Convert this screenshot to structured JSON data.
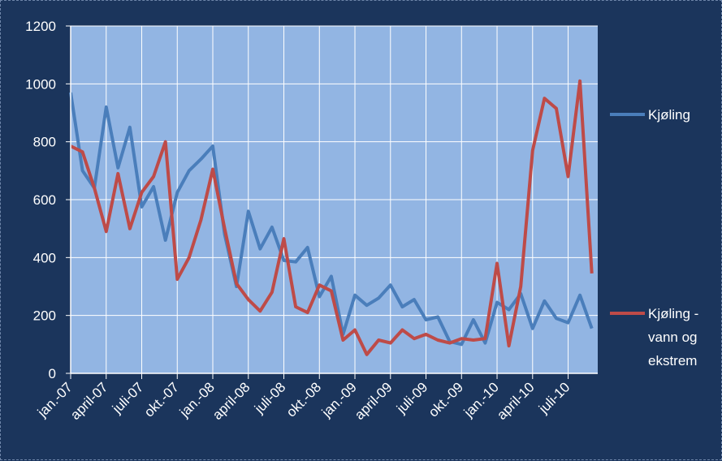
{
  "chart_data": {
    "type": "line",
    "title": "",
    "xlabel": "",
    "ylabel": "",
    "ylim": [
      0,
      1200
    ],
    "yticks": [
      0,
      200,
      400,
      600,
      800,
      1000,
      1200
    ],
    "grid": true,
    "legend_position": "right",
    "x_tick_labels": [
      "jan.-07",
      "april-07",
      "juli-07",
      "okt.-07",
      "jan.-08",
      "april-08",
      "juli-08",
      "okt.-08",
      "jan.-09",
      "april-09",
      "juli-09",
      "okt.-09",
      "jan.-10",
      "april-10",
      "juli-10"
    ],
    "x": [
      "jan.-07",
      "feb.-07",
      "mars-07",
      "april-07",
      "mai-07",
      "juni-07",
      "juli-07",
      "aug.-07",
      "sep.-07",
      "okt.-07",
      "nov.-07",
      "des.-07",
      "jan.-08",
      "feb.-08",
      "mars-08",
      "april-08",
      "mai-08",
      "juni-08",
      "juli-08",
      "aug.-08",
      "sep.-08",
      "okt.-08",
      "nov.-08",
      "des.-08",
      "jan.-09",
      "feb.-09",
      "mars-09",
      "april-09",
      "mai-09",
      "juni-09",
      "juli-09",
      "aug.-09",
      "sep.-09",
      "okt.-09",
      "nov.-09",
      "des.-09",
      "jan.-10",
      "feb.-10",
      "mars-10",
      "april-10",
      "mai-10",
      "juni-10",
      "juli-10",
      "aug.-10",
      "sep.-10"
    ],
    "series": [
      {
        "name": "Kjøling",
        "color": "#4a7ebb",
        "values": [
          970,
          700,
          640,
          920,
          710,
          850,
          575,
          645,
          460,
          625,
          700,
          740,
          785,
          480,
          300,
          560,
          430,
          505,
          390,
          385,
          435,
          265,
          335,
          135,
          270,
          235,
          260,
          305,
          230,
          255,
          185,
          195,
          110,
          100,
          185,
          105,
          245,
          220,
          275,
          155,
          250,
          190,
          175,
          270,
          155
        ]
      },
      {
        "name": "Kjøling - vann og ekstrem",
        "color": "#be4b48",
        "values": [
          785,
          765,
          640,
          490,
          690,
          500,
          625,
          680,
          800,
          325,
          400,
          530,
          705,
          500,
          310,
          255,
          215,
          280,
          465,
          230,
          210,
          305,
          285,
          115,
          150,
          65,
          115,
          105,
          150,
          120,
          135,
          115,
          105,
          120,
          115,
          120,
          380,
          95,
          300,
          770,
          950,
          915,
          680,
          1010,
          345
        ]
      }
    ]
  },
  "legend": {
    "line1": "Kjøling",
    "line2a": "Kjøling -",
    "line2b": "vann og",
    "line2c": "ekstrem"
  }
}
